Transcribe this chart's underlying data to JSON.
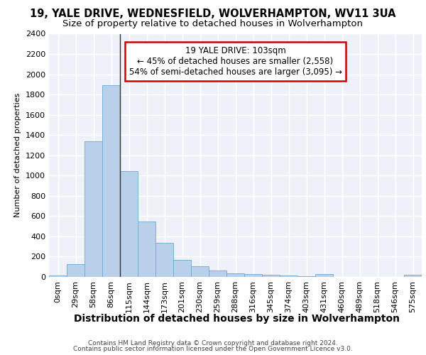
{
  "title_line1": "19, YALE DRIVE, WEDNESFIELD, WOLVERHAMPTON, WV11 3UA",
  "title_line2": "Size of property relative to detached houses in Wolverhampton",
  "xlabel": "Distribution of detached houses by size in Wolverhampton",
  "ylabel": "Number of detached properties",
  "footnote_line1": "Contains HM Land Registry data © Crown copyright and database right 2024.",
  "footnote_line2": "Contains public sector information licensed under the Open Government Licence v3.0.",
  "bar_labels": [
    "0sqm",
    "29sqm",
    "58sqm",
    "86sqm",
    "115sqm",
    "144sqm",
    "173sqm",
    "201sqm",
    "230sqm",
    "259sqm",
    "288sqm",
    "316sqm",
    "345sqm",
    "374sqm",
    "403sqm",
    "431sqm",
    "460sqm",
    "489sqm",
    "518sqm",
    "546sqm",
    "575sqm"
  ],
  "bar_values": [
    15,
    125,
    1340,
    1890,
    1045,
    545,
    335,
    165,
    108,
    65,
    38,
    28,
    22,
    15,
    5,
    25,
    2,
    2,
    2,
    2,
    18
  ],
  "bar_color": "#b8d0ea",
  "bar_edge_color": "#6aaad4",
  "annotation_text": "19 YALE DRIVE: 103sqm\n← 45% of detached houses are smaller (2,558)\n54% of semi-detached houses are larger (3,095) →",
  "annotation_box_color": "#ffffff",
  "annotation_box_edge_color": "#cc0000",
  "vline_color": "#333333",
  "ylim": [
    0,
    2400
  ],
  "background_color": "#eef2f8",
  "grid_color": "#ffffff",
  "title_fontsize": 10.5,
  "subtitle_fontsize": 9.5,
  "xlabel_fontsize": 10,
  "ylabel_fontsize": 8,
  "tick_fontsize": 8,
  "footnote_fontsize": 6.5,
  "ann_fontsize": 8.5
}
